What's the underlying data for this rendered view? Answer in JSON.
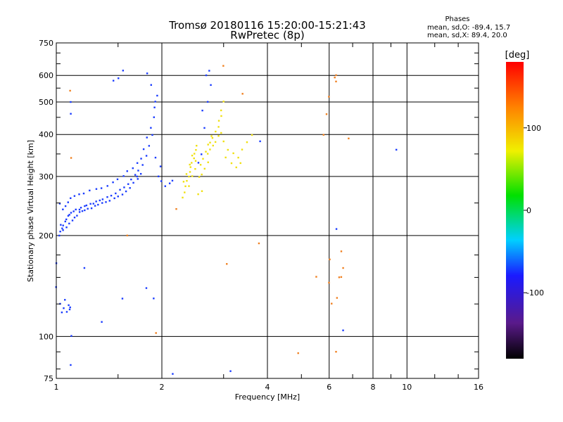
{
  "header": {
    "title_line1": "Tromsø 20180116 15:20:00-15:21:43",
    "title_line2": "RwPretec (8p)"
  },
  "phase_legend": {
    "title": "Phases",
    "line_o": "mean, sd,O: -89.4, 15.7",
    "line_x": "mean, sd,X:  89.4, 20.0"
  },
  "chart_data": {
    "type": "scatter",
    "xlabel": "Frequency [MHz]",
    "ylabel": "Stationary phase Virtual Height [km]",
    "x_scale": "log",
    "y_scale": "log",
    "xlim": [
      1,
      16
    ],
    "ylim": [
      75,
      750
    ],
    "x_ticks": [
      1,
      2,
      4,
      6,
      8,
      10,
      16
    ],
    "y_ticks": [
      75,
      100,
      200,
      300,
      400,
      500,
      600,
      750
    ],
    "grid": true,
    "colorbar": {
      "label": "[deg]",
      "range": [
        -180,
        180
      ],
      "ticks": [
        -100,
        0,
        100
      ]
    },
    "series": [
      {
        "mode": "O",
        "color": "#1a3cff",
        "points": [
          [
            1.02,
            200
          ],
          [
            1.03,
            205
          ],
          [
            1.04,
            210
          ],
          [
            1.05,
            215
          ],
          [
            1.06,
            220
          ],
          [
            1.07,
            224
          ],
          [
            1.08,
            228
          ],
          [
            1.09,
            230
          ],
          [
            1.1,
            233
          ],
          [
            1.12,
            236
          ],
          [
            1.14,
            238
          ],
          [
            1.16,
            240
          ],
          [
            1.18,
            242
          ],
          [
            1.2,
            244
          ],
          [
            1.22,
            246
          ],
          [
            1.25,
            248
          ],
          [
            1.28,
            250
          ],
          [
            1.3,
            252
          ],
          [
            1.33,
            254
          ],
          [
            1.36,
            257
          ],
          [
            1.4,
            260
          ],
          [
            1.44,
            264
          ],
          [
            1.48,
            268
          ],
          [
            1.52,
            273
          ],
          [
            1.56,
            278
          ],
          [
            1.6,
            285
          ],
          [
            1.64,
            293
          ],
          [
            1.68,
            302
          ],
          [
            1.72,
            312
          ],
          [
            1.76,
            325
          ],
          [
            1.8,
            345
          ],
          [
            1.84,
            370
          ],
          [
            1.88,
            400
          ],
          [
            1.9,
            450
          ],
          [
            1.92,
            500
          ],
          [
            1.86,
            560
          ],
          [
            1.82,
            610
          ],
          [
            1.02,
            250
          ],
          [
            1.04,
            240
          ],
          [
            1.06,
            245
          ],
          [
            1.08,
            250
          ],
          [
            1.1,
            258
          ],
          [
            1.13,
            262
          ],
          [
            1.16,
            266
          ],
          [
            1.2,
            268
          ],
          [
            1.25,
            272
          ],
          [
            1.3,
            275
          ],
          [
            1.35,
            278
          ],
          [
            1.4,
            282
          ],
          [
            1.45,
            288
          ],
          [
            1.5,
            295
          ],
          [
            1.55,
            300
          ],
          [
            1.6,
            310
          ],
          [
            1.65,
            318
          ],
          [
            1.7,
            330
          ],
          [
            1.75,
            340
          ],
          [
            1.78,
            360
          ],
          [
            1.82,
            390
          ],
          [
            1.86,
            420
          ],
          [
            1.9,
            480
          ],
          [
            1.94,
            520
          ],
          [
            1.96,
            300
          ],
          [
            2.0,
            290
          ],
          [
            2.05,
            280
          ],
          [
            2.1,
            285
          ],
          [
            2.15,
            290
          ],
          [
            1.98,
            320
          ],
          [
            1.92,
            340
          ],
          [
            1.03,
            215
          ],
          [
            1.05,
            208
          ],
          [
            1.07,
            212
          ],
          [
            1.09,
            218
          ],
          [
            1.11,
            222
          ],
          [
            1.13,
            226
          ],
          [
            1.15,
            230
          ],
          [
            1.17,
            234
          ],
          [
            1.19,
            236
          ],
          [
            1.21,
            238
          ],
          [
            1.23,
            240
          ],
          [
            1.26,
            242
          ],
          [
            1.29,
            245
          ],
          [
            1.32,
            248
          ],
          [
            1.35,
            250
          ],
          [
            1.38,
            252
          ],
          [
            1.42,
            255
          ],
          [
            1.46,
            258
          ],
          [
            1.5,
            262
          ],
          [
            1.54,
            266
          ],
          [
            1.58,
            272
          ],
          [
            1.62,
            278
          ],
          [
            1.66,
            286
          ],
          [
            1.7,
            295
          ],
          [
            1.74,
            305
          ],
          [
            1.5,
            590
          ],
          [
            1.55,
            620
          ],
          [
            1.45,
            580
          ],
          [
            1.03,
            125
          ],
          [
            1.05,
            122
          ],
          [
            1.07,
            118
          ],
          [
            1.09,
            120
          ],
          [
            1.04,
            118
          ],
          [
            1.06,
            128
          ],
          [
            1.08,
            124
          ],
          [
            1.1,
            122
          ],
          [
            2.55,
            330
          ],
          [
            2.6,
            350
          ],
          [
            2.65,
            420
          ],
          [
            2.7,
            500
          ],
          [
            2.75,
            560
          ],
          [
            2.68,
            600
          ],
          [
            2.72,
            620
          ],
          [
            2.62,
            470
          ],
          [
            1.1,
            460
          ],
          [
            1.1,
            500
          ],
          [
            1.35,
            110
          ],
          [
            1.55,
            130
          ],
          [
            1.7,
            300
          ],
          [
            1.1,
            100
          ],
          [
            1.1,
            82
          ],
          [
            2.15,
            77
          ],
          [
            3.15,
            79
          ],
          [
            3.8,
            380
          ],
          [
            1.0,
            165
          ],
          [
            1.0,
            140
          ],
          [
            1.2,
            160
          ],
          [
            1.9,
            130
          ],
          [
            1.8,
            140
          ],
          [
            6.3,
            210
          ],
          [
            9.3,
            360
          ],
          [
            6.6,
            104
          ]
        ]
      },
      {
        "mode": "X",
        "color": "#f0e010",
        "points": [
          [
            2.3,
            260
          ],
          [
            2.32,
            270
          ],
          [
            2.34,
            280
          ],
          [
            2.36,
            290
          ],
          [
            2.38,
            300
          ],
          [
            2.4,
            310
          ],
          [
            2.42,
            320
          ],
          [
            2.44,
            330
          ],
          [
            2.46,
            340
          ],
          [
            2.48,
            350
          ],
          [
            2.5,
            360
          ],
          [
            2.52,
            370
          ],
          [
            2.3,
            290
          ],
          [
            2.35,
            305
          ],
          [
            2.4,
            325
          ],
          [
            2.45,
            345
          ],
          [
            2.5,
            335
          ],
          [
            2.55,
            300
          ],
          [
            2.6,
            305
          ],
          [
            2.65,
            315
          ],
          [
            2.7,
            330
          ],
          [
            2.75,
            360
          ],
          [
            2.8,
            390
          ],
          [
            2.85,
            410
          ],
          [
            2.9,
            440
          ],
          [
            2.95,
            470
          ],
          [
            3.0,
            500
          ],
          [
            2.8,
            370
          ],
          [
            2.85,
            380
          ],
          [
            2.9,
            395
          ],
          [
            2.95,
            405
          ],
          [
            3.0,
            380
          ],
          [
            3.1,
            360
          ],
          [
            3.2,
            350
          ],
          [
            3.3,
            340
          ],
          [
            3.4,
            360
          ],
          [
            3.5,
            380
          ],
          [
            3.6,
            400
          ],
          [
            3.05,
            340
          ],
          [
            3.15,
            330
          ],
          [
            3.25,
            320
          ],
          [
            3.35,
            330
          ],
          [
            2.55,
            265
          ],
          [
            2.6,
            270
          ],
          [
            2.7,
            350
          ],
          [
            2.75,
            380
          ],
          [
            2.9,
            420
          ],
          [
            2.95,
            455
          ],
          [
            2.4,
            280
          ],
          [
            2.45,
            300
          ],
          [
            2.5,
            315
          ],
          [
            2.58,
            325
          ],
          [
            2.62,
            340
          ],
          [
            2.68,
            355
          ],
          [
            2.72,
            372
          ],
          [
            2.78,
            395
          ]
        ]
      },
      {
        "mode": "X-scattered",
        "color": "#f08020",
        "points": [
          [
            6.3,
            600
          ],
          [
            6.3,
            575
          ],
          [
            6.0,
            520
          ],
          [
            5.9,
            460
          ],
          [
            6.0,
            170
          ],
          [
            6.0,
            145
          ],
          [
            6.1,
            125
          ],
          [
            6.3,
            130
          ],
          [
            6.4,
            150
          ],
          [
            6.5,
            180
          ],
          [
            6.6,
            160
          ],
          [
            6.5,
            150
          ],
          [
            6.8,
            390
          ],
          [
            5.8,
            400
          ],
          [
            6.3,
            90
          ],
          [
            5.5,
            150
          ],
          [
            4.9,
            89
          ],
          [
            1.1,
            540
          ],
          [
            1.1,
            340
          ],
          [
            1.6,
            200
          ],
          [
            2.2,
            240
          ],
          [
            3.8,
            190
          ],
          [
            3.4,
            530
          ],
          [
            1.92,
            102
          ],
          [
            3.05,
            165
          ],
          [
            6.2,
            590
          ],
          [
            3.0,
            640
          ]
        ]
      }
    ]
  }
}
